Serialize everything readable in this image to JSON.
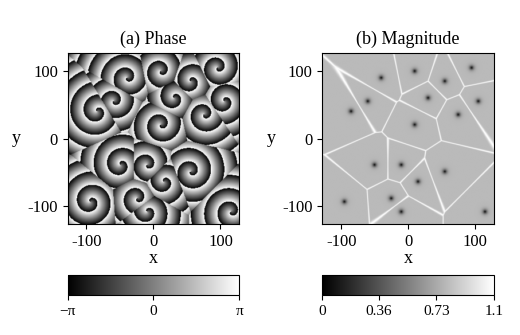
{
  "chart_data": [
    {
      "type": "heatmap",
      "field": "phase",
      "title": "(a) Phase",
      "x_label": "x",
      "y_label": "y",
      "xlim": [
        -128,
        128
      ],
      "ylim": [
        -128,
        128
      ],
      "xticks": [
        -100,
        0,
        100
      ],
      "yticks": [
        -100,
        0,
        100
      ],
      "color": "gray",
      "wavelength": 20,
      "colorbar": {
        "range": [
          -3.14159,
          3.14159
        ],
        "ticks": [
          {
            "value": -3.14159,
            "label": "−π"
          },
          0,
          {
            "value": 3.14159,
            "label": "π"
          }
        ]
      },
      "cores": [
        [
          -40,
          90,
          1
        ],
        [
          -85,
          40,
          -1
        ],
        [
          10,
          100,
          1
        ],
        [
          55,
          85,
          -1
        ],
        [
          75,
          35,
          1
        ],
        [
          105,
          55,
          -1
        ],
        [
          95,
          105,
          1
        ],
        [
          -60,
          55,
          1
        ],
        [
          30,
          60,
          -1
        ],
        [
          10,
          20,
          1
        ],
        [
          -50,
          -40,
          -1
        ],
        [
          -10,
          -40,
          1
        ],
        [
          15,
          -65,
          -1
        ],
        [
          55,
          -50,
          1
        ],
        [
          -95,
          -95,
          -1
        ],
        [
          -25,
          -90,
          1
        ],
        [
          -10,
          -110,
          -1
        ],
        [
          115,
          -110,
          1
        ]
      ]
    },
    {
      "type": "heatmap",
      "field": "magnitude",
      "title": "(b) Magnitude",
      "x_label": "x",
      "y_label": "y",
      "xlim": [
        -128,
        128
      ],
      "ylim": [
        -128,
        128
      ],
      "xticks": [
        -100,
        0,
        100
      ],
      "yticks": [
        -100,
        0,
        100
      ],
      "color": "gray",
      "wavelength": 20,
      "colorbar": {
        "range": [
          0,
          1.1
        ],
        "ticks": [
          0,
          0.36,
          0.73,
          1.1
        ]
      },
      "cores": [
        [
          -40,
          90,
          1
        ],
        [
          -85,
          40,
          -1
        ],
        [
          10,
          100,
          1
        ],
        [
          55,
          85,
          -1
        ],
        [
          75,
          35,
          1
        ],
        [
          105,
          55,
          -1
        ],
        [
          95,
          105,
          1
        ],
        [
          -60,
          55,
          1
        ],
        [
          30,
          60,
          -1
        ],
        [
          10,
          20,
          1
        ],
        [
          -50,
          -40,
          -1
        ],
        [
          -10,
          -40,
          1
        ],
        [
          15,
          -65,
          -1
        ],
        [
          55,
          -50,
          1
        ],
        [
          -95,
          -95,
          -1
        ],
        [
          -25,
          -90,
          1
        ],
        [
          -10,
          -110,
          -1
        ],
        [
          115,
          -110,
          1
        ]
      ]
    }
  ]
}
